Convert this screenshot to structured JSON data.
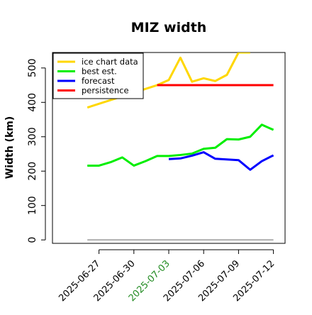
{
  "chart_data": {
    "type": "line",
    "title": "MIZ width",
    "xlabel": "",
    "ylabel": "Width (km)",
    "ylim": [
      -10,
      545
    ],
    "xlim": [
      "2025-06-23",
      "2025-07-13"
    ],
    "grid": false,
    "legend_position": "top-left",
    "y_ticks": [
      0,
      100,
      200,
      300,
      400,
      500
    ],
    "x_ticks": [
      {
        "label": "2025-06-27",
        "date": "2025-06-27",
        "color": "#000000"
      },
      {
        "label": "2025-06-30",
        "date": "2025-06-30",
        "color": "#000000"
      },
      {
        "label": "2025-07-03",
        "date": "2025-07-03",
        "color": "#228b22"
      },
      {
        "label": "2025-07-06",
        "date": "2025-07-06",
        "color": "#000000"
      },
      {
        "label": "2025-07-09",
        "date": "2025-07-09",
        "color": "#000000"
      },
      {
        "label": "2025-07-12",
        "date": "2025-07-12",
        "color": "#000000"
      }
    ],
    "series": [
      {
        "name": "ice chart data",
        "color": "#ffd700",
        "x": [
          "2025-06-26",
          "2025-07-02",
          "2025-07-03",
          "2025-07-04",
          "2025-07-05",
          "2025-07-06",
          "2025-07-07",
          "2025-07-08",
          "2025-07-09",
          "2025-07-10"
        ],
        "y": [
          385,
          450,
          465,
          530,
          460,
          470,
          462,
          480,
          545,
          545
        ]
      },
      {
        "name": "best est.",
        "color": "#00ee00",
        "x": [
          "2025-06-26",
          "2025-06-27",
          "2025-06-28",
          "2025-06-29",
          "2025-06-30",
          "2025-07-01",
          "2025-07-02",
          "2025-07-03",
          "2025-07-04",
          "2025-07-05",
          "2025-07-06",
          "2025-07-07",
          "2025-07-08",
          "2025-07-09",
          "2025-07-10",
          "2025-07-11",
          "2025-07-12"
        ],
        "y": [
          216,
          216,
          226,
          240,
          216,
          229,
          244,
          244,
          247,
          251,
          265,
          268,
          293,
          292,
          300,
          335,
          320
        ]
      },
      {
        "name": "forecast",
        "color": "#0000ff",
        "x": [
          "2025-07-03",
          "2025-07-04",
          "2025-07-05",
          "2025-07-06",
          "2025-07-07",
          "2025-07-08",
          "2025-07-09",
          "2025-07-10",
          "2025-07-11",
          "2025-07-12"
        ],
        "y": [
          235,
          237,
          245,
          255,
          236,
          234,
          232,
          204,
          229,
          246
        ]
      },
      {
        "name": "persistence",
        "color": "#ff0000",
        "x": [
          "2025-07-02",
          "2025-07-12"
        ],
        "y": [
          450,
          450
        ]
      },
      {
        "name": "",
        "color": "#999999",
        "x": [
          "2025-06-26",
          "2025-07-12"
        ],
        "y": [
          0,
          0
        ]
      }
    ]
  }
}
